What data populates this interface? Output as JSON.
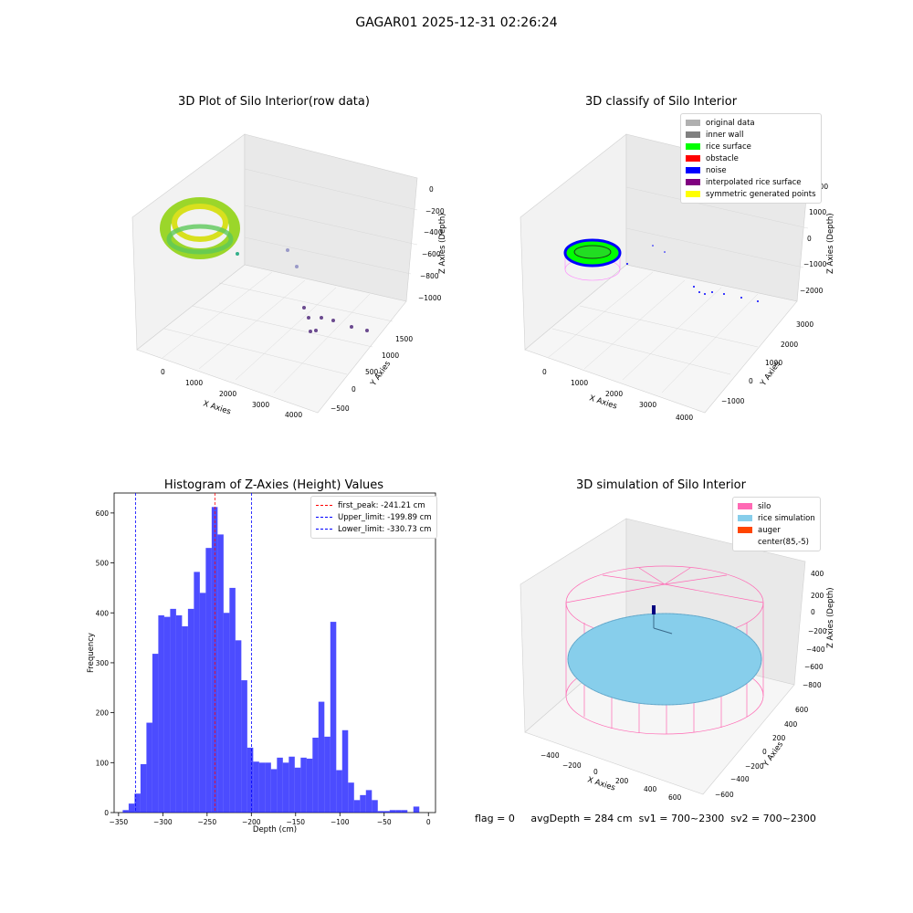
{
  "title": "GAGAR01 2025-12-31 02:26:24",
  "panels": {
    "raw": {
      "title": "3D Plot of Silo Interior(row data)",
      "xlabel": "X Axies",
      "ylabel": "Y Axies",
      "zlabel": "Z Axies (Depth)",
      "xticks": [
        "0",
        "1000",
        "2000",
        "3000",
        "4000"
      ],
      "yticks": [
        "1500",
        "1000",
        "500",
        "0",
        "−500"
      ],
      "zticks": [
        "0",
        "−200",
        "−400",
        "−600",
        "−800",
        "−1000"
      ]
    },
    "classify": {
      "title": "3D classify of Silo Interior",
      "xlabel": "X Axies",
      "ylabel": "Y Axies",
      "zlabel": "Z Axies (Depth)",
      "xticks": [
        "0",
        "1000",
        "2000",
        "3000",
        "4000"
      ],
      "yticks": [
        "3000",
        "2000",
        "1000",
        "0",
        "−1000"
      ],
      "zticks": [
        "2000",
        "1000",
        "0",
        "−1000",
        "−2000"
      ],
      "legend": [
        {
          "label": "original data",
          "color": "#b0b0b0"
        },
        {
          "label": "inner wall",
          "color": "#808080"
        },
        {
          "label": "rice surface",
          "color": "#00ff00"
        },
        {
          "label": "obstacle",
          "color": "#ff0000"
        },
        {
          "label": "noise",
          "color": "#0000ff"
        },
        {
          "label": "interpolated rice surface",
          "color": "#800080"
        },
        {
          "label": "symmetric generated points",
          "color": "#ffff00"
        }
      ]
    },
    "simulation": {
      "title": "3D simulation of Silo Interior",
      "xlabel": "X Axies",
      "ylabel": "Y Axies",
      "zlabel": "Z Axies (Depth)",
      "xticks": [
        "−400",
        "−200",
        "0",
        "200",
        "400",
        "600"
      ],
      "yticks": [
        "600",
        "400",
        "200",
        "0",
        "−200",
        "−400",
        "−600"
      ],
      "zticks": [
        "400",
        "200",
        "0",
        "−200",
        "−400",
        "−600",
        "−800"
      ],
      "legend": [
        {
          "label": "silo",
          "color": "#ff69b4"
        },
        {
          "label": "rice simulation",
          "color": "#87ceeb"
        },
        {
          "label": "auger",
          "color": "#ff4500"
        },
        {
          "label": "center(85,-5)",
          "color": ""
        }
      ]
    }
  },
  "chart_data": {
    "type": "bar",
    "title": "Histogram of Z-Axies (Height) Values",
    "xlabel": "Depth (cm)",
    "ylabel": "Frequency",
    "xlim": [
      -355,
      8
    ],
    "ylim": [
      0,
      640
    ],
    "xticks": [
      -350,
      -300,
      -250,
      -200,
      -150,
      -100,
      -50,
      0
    ],
    "yticks": [
      0,
      100,
      200,
      300,
      400,
      500,
      600
    ],
    "bin_width": 6.7,
    "bin_start": -345.3,
    "values": [
      5,
      18,
      38,
      97,
      180,
      318,
      395,
      392,
      408,
      395,
      373,
      408,
      482,
      440,
      530,
      612,
      557,
      400,
      450,
      345,
      265,
      130,
      102,
      100,
      100,
      87,
      110,
      100,
      112,
      90,
      110,
      108,
      150,
      222,
      152,
      382,
      85,
      165,
      60,
      25,
      35,
      45,
      25,
      3,
      3,
      5,
      5,
      5,
      0,
      12
    ],
    "bar_color": "#0000ff",
    "lines": [
      {
        "label": "first_peak: -241.21 cm",
        "x": -241.21,
        "color": "#ff0000"
      },
      {
        "label": "Upper_limit: -199.89 cm",
        "x": -199.89,
        "color": "#0000ff"
      },
      {
        "label": "Lower_limit: -330.73 cm",
        "x": -330.73,
        "color": "#0000ff"
      }
    ],
    "legend_position": "top-right"
  },
  "status": {
    "flag": "flag = 0",
    "avg": "avgDepth = 284 cm",
    "sv1": "sv1 = 700~2300",
    "sv2": "sv2 = 700~2300"
  }
}
